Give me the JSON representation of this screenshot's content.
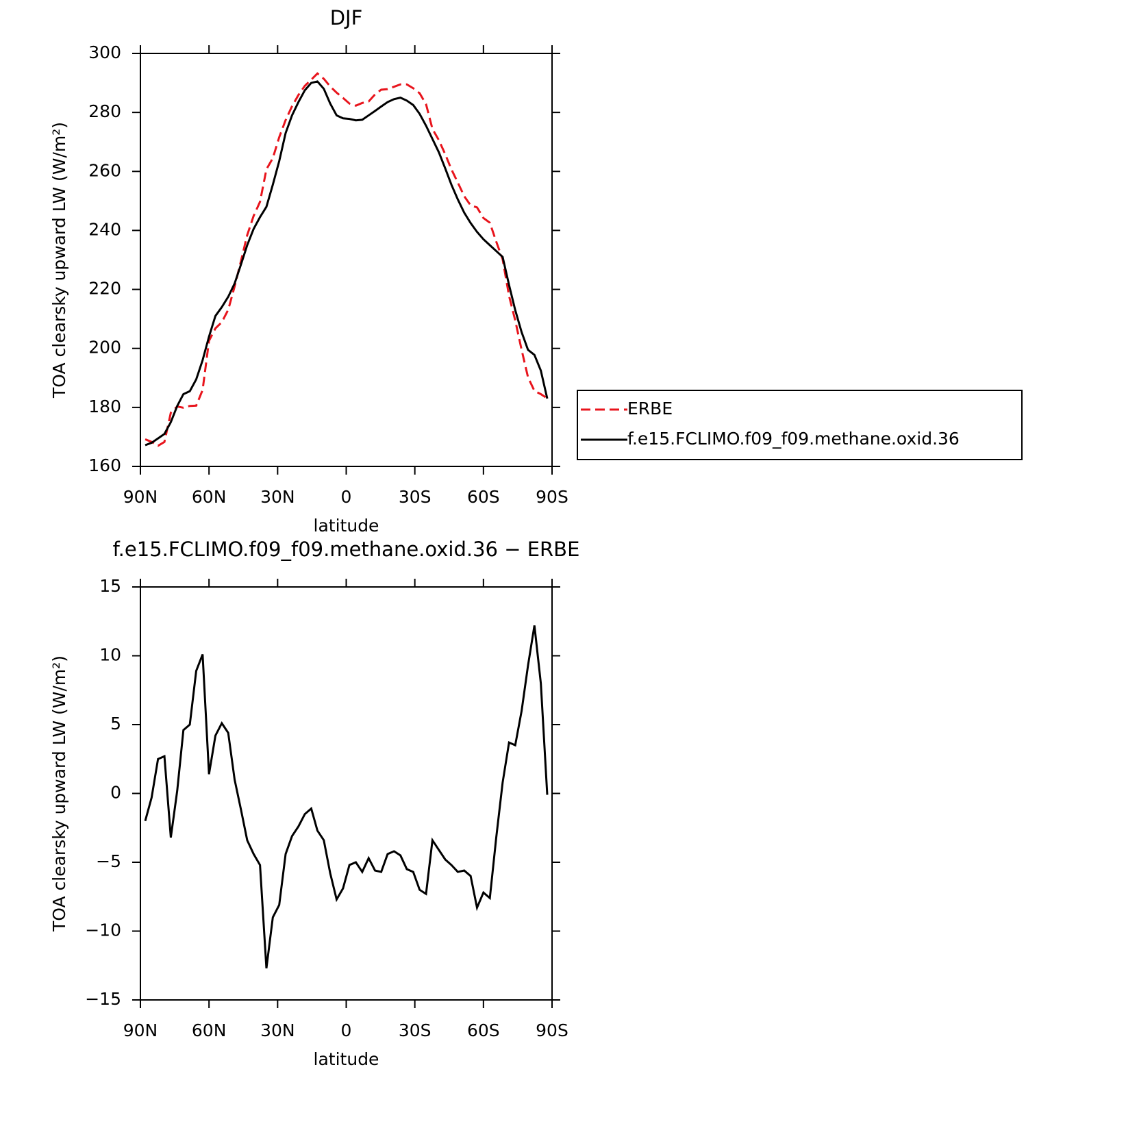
{
  "chart_data": [
    {
      "type": "line",
      "title": "DJF",
      "x_label": "latitude",
      "y_label": "TOA clearsky upward LW (W/m²)",
      "x": [
        87.9,
        85.1,
        82.3,
        79.5,
        76.7,
        73.9,
        71.2,
        68.4,
        65.6,
        62.8,
        60.0,
        57.2,
        54.4,
        51.6,
        48.8,
        46.0,
        43.3,
        40.5,
        37.7,
        34.9,
        32.1,
        29.3,
        26.5,
        23.7,
        20.9,
        18.1,
        15.3,
        12.6,
        9.8,
        7.0,
        4.2,
        1.4,
        -1.4,
        -4.2,
        -7.0,
        -9.8,
        -12.6,
        -15.3,
        -18.1,
        -20.9,
        -23.7,
        -26.5,
        -29.3,
        -32.1,
        -34.9,
        -37.7,
        -40.5,
        -43.3,
        -46.0,
        -48.8,
        -51.6,
        -54.4,
        -57.2,
        -60.0,
        -62.8,
        -65.6,
        -68.4,
        -71.2,
        -73.9,
        -76.7,
        -79.5,
        -82.3,
        -85.1,
        -87.9
      ],
      "series": [
        {
          "name": "ERBE",
          "color": "#e8141c",
          "dashed": true,
          "values": [
            169.2,
            168.3,
            167,
            168.3,
            178.2,
            180.3,
            179.9,
            180.5,
            180.6,
            185.9,
            202.6,
            206.8,
            208.9,
            213.1,
            221,
            229.7,
            238.4,
            244.9,
            249.7,
            260.7,
            264.5,
            271.6,
            277.4,
            282.1,
            285.9,
            289,
            291.1,
            293.2,
            291.4,
            288.8,
            286.7,
            284.9,
            283,
            282.3,
            283.2,
            283.7,
            286.1,
            287.7,
            287.9,
            288.7,
            289.5,
            289.5,
            288.2,
            286.5,
            282.8,
            274.4,
            270.6,
            265.8,
            260.7,
            256.2,
            251.6,
            248.5,
            247.8,
            244.2,
            242.6,
            236.2,
            230.2,
            217.8,
            209.5,
            199.5,
            190.2,
            185.6,
            184.5,
            183.1
          ]
        },
        {
          "name": "f.e15.FCLIMO.f09_f09.methane.oxid.36",
          "color": "#000000",
          "dashed": false,
          "values": [
            167.2,
            168,
            169.5,
            171,
            175,
            180.5,
            184.5,
            185.5,
            189.5,
            196,
            204,
            211,
            214,
            217.5,
            222,
            228.5,
            235,
            240.5,
            244.5,
            248,
            255.5,
            263.5,
            273,
            279,
            283.5,
            287.5,
            290,
            290.5,
            288,
            283,
            279,
            278,
            277.8,
            277.3,
            277.5,
            279,
            280.5,
            282,
            283.5,
            284.5,
            285,
            284,
            282.5,
            279.5,
            275.5,
            271,
            266.5,
            261,
            255.5,
            250.5,
            246,
            242.5,
            239.5,
            237,
            235,
            233,
            231,
            221.5,
            213,
            205.5,
            199.5,
            197.8,
            192.5,
            183
          ]
        }
      ],
      "xlim": [
        90,
        -90
      ],
      "xticks": [
        {
          "value": 90,
          "label": "90N"
        },
        {
          "value": 60,
          "label": "60N"
        },
        {
          "value": 30,
          "label": "30N"
        },
        0,
        {
          "value": -30,
          "label": "30S"
        },
        {
          "value": -60,
          "label": "60S"
        },
        {
          "value": -90,
          "label": "90S"
        }
      ],
      "ylim": [
        160,
        300
      ],
      "yticks": [
        160,
        180,
        200,
        220,
        240,
        260,
        280,
        300
      ],
      "legend": "right"
    },
    {
      "type": "line",
      "title": "f.e15.FCLIMO.f09_f09.methane.oxid.36 − ERBE",
      "x_label": "latitude",
      "y_label": "TOA clearsky upward LW (W/m²)",
      "x": [
        87.9,
        85.1,
        82.3,
        79.5,
        76.7,
        73.9,
        71.2,
        68.4,
        65.6,
        62.8,
        60.0,
        57.2,
        54.4,
        51.6,
        48.8,
        46.0,
        43.3,
        40.5,
        37.7,
        34.9,
        32.1,
        29.3,
        26.5,
        23.7,
        20.9,
        18.1,
        15.3,
        12.6,
        9.8,
        7.0,
        4.2,
        1.4,
        -1.4,
        -4.2,
        -7.0,
        -9.8,
        -12.6,
        -15.3,
        -18.1,
        -20.9,
        -23.7,
        -26.5,
        -29.3,
        -32.1,
        -34.9,
        -37.7,
        -40.5,
        -43.3,
        -46.0,
        -48.8,
        -51.6,
        -54.4,
        -57.2,
        -60.0,
        -62.8,
        -65.6,
        -68.4,
        -71.2,
        -73.9,
        -76.7,
        -79.5,
        -82.3,
        -85.1,
        -87.9
      ],
      "values": [
        -2.0,
        -0.3,
        2.5,
        2.7,
        -3.2,
        0.2,
        4.6,
        5.0,
        8.9,
        10.1,
        1.4,
        4.2,
        5.1,
        4.4,
        1.0,
        -1.2,
        -3.4,
        -4.4,
        -5.2,
        -12.7,
        -9.0,
        -8.1,
        -4.4,
        -3.1,
        -2.4,
        -1.5,
        -1.1,
        -2.7,
        -3.4,
        -5.8,
        -7.7,
        -6.9,
        -5.2,
        -5.0,
        -5.7,
        -4.7,
        -5.6,
        -5.7,
        -4.4,
        -4.2,
        -4.5,
        -5.5,
        -5.7,
        -7.0,
        -7.3,
        -3.4,
        -4.1,
        -4.8,
        -5.2,
        -5.7,
        -5.6,
        -6.0,
        -8.3,
        -7.2,
        -7.6,
        -3.2,
        0.8,
        3.7,
        3.5,
        6.0,
        9.3,
        12.2,
        8.0,
        -0.1
      ],
      "color": "#000000",
      "xlim": [
        90,
        -90
      ],
      "xticks": [
        {
          "value": 90,
          "label": "90N"
        },
        {
          "value": 60,
          "label": "60N"
        },
        {
          "value": 30,
          "label": "30N"
        },
        0,
        {
          "value": -30,
          "label": "30S"
        },
        {
          "value": -60,
          "label": "60S"
        },
        {
          "value": -90,
          "label": "90S"
        }
      ],
      "ylim": [
        -15,
        15
      ],
      "yticks": [
        {
          "value": -15,
          "label": "−15"
        },
        {
          "value": -10,
          "label": "−10"
        },
        {
          "value": -5,
          "label": "−5"
        },
        0,
        5,
        10,
        15
      ]
    }
  ]
}
